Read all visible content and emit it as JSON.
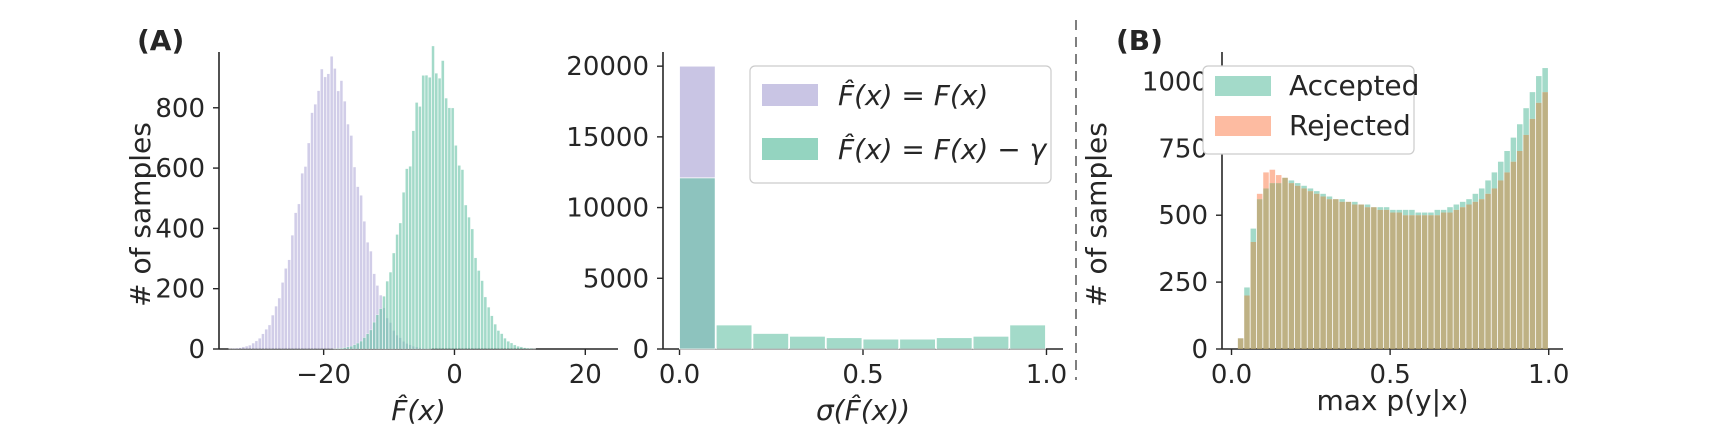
{
  "panel_labels": {
    "a": "(A)",
    "b": "(B)"
  },
  "colors": {
    "lavender": "#b2acd8",
    "teal": "#66c2a5",
    "orange": "#fc8d62",
    "overlap_b": "#b3a36e",
    "overlap_mid": "#80b4b4",
    "axis": "#262626",
    "divider": "#555555"
  },
  "chart_data": [
    {
      "id": "hist-fhat",
      "type": "bar",
      "xlabel": "F̂(x)",
      "ylabel": "# of samples",
      "xlim": [
        -36,
        25
      ],
      "ylim": [
        0,
        985
      ],
      "xticks": [
        -20,
        0,
        20
      ],
      "xtick_labels": [
        "−20",
        "0",
        "20"
      ],
      "yticks": [
        0,
        200,
        400,
        600,
        800
      ],
      "ytick_labels": [
        "0",
        "200",
        "400",
        "600",
        "800"
      ],
      "bin_width": 0.5,
      "series": [
        {
          "color": "#b2acd8",
          "distribution": "normal",
          "mean": -19,
          "std": 4.2,
          "peak": 950
        },
        {
          "color": "#66c2a5",
          "distribution": "normal",
          "mean": -3,
          "std": 4.2,
          "peak": 960
        }
      ]
    },
    {
      "id": "hist-sigma",
      "type": "bar",
      "xlabel": "σ(F̂(x))",
      "ylabel": "",
      "xlim": [
        -0.045,
        1.045
      ],
      "ylim": [
        0,
        21000
      ],
      "xticks": [
        0.0,
        0.5,
        1.0
      ],
      "xtick_labels": [
        "0.0",
        "0.5",
        "1.0"
      ],
      "yticks": [
        0,
        5000,
        10000,
        15000,
        20000
      ],
      "ytick_labels": [
        "0",
        "5000",
        "10000",
        "15000",
        "20000"
      ],
      "bin_edges": [
        0.0,
        0.1,
        0.2,
        0.3,
        0.4,
        0.5,
        0.6,
        0.7,
        0.8,
        0.9,
        1.0
      ],
      "series": [
        {
          "name": "F̂(x) = F(x)",
          "color": "#b2acd8",
          "values": [
            20000,
            0,
            0,
            0,
            0,
            0,
            0,
            0,
            0,
            0
          ]
        },
        {
          "name": "F̂(x) = F(x) − γ",
          "color": "#66c2a5",
          "values": [
            12100,
            1700,
            1100,
            900,
            800,
            700,
            700,
            800,
            900,
            1700
          ]
        }
      ],
      "legend": {
        "placement": "top-right",
        "entries": [
          {
            "lhs": "F̂(x)",
            "rhs": "= F(x)"
          },
          {
            "lhs": "F̂(x)",
            "rhs": "= F(x) − γ"
          }
        ]
      }
    },
    {
      "id": "hist-maxp",
      "type": "bar",
      "xlabel": "max p(y|x)",
      "ylabel": "# of samples",
      "xlim": [
        -0.03,
        1.045
      ],
      "ylim": [
        0,
        1110
      ],
      "xticks": [
        0.0,
        0.5,
        1.0
      ],
      "xtick_labels": [
        "0.0",
        "0.5",
        "1.0"
      ],
      "yticks": [
        0,
        250,
        500,
        750,
        1000
      ],
      "ytick_labels": [
        "0",
        "250",
        "500",
        "750",
        "1000"
      ],
      "bin_start": 0.02,
      "bin_width": 0.02,
      "series": [
        {
          "name": "Accepted",
          "color": "#66c2a5",
          "values": [
            40,
            230,
            450,
            560,
            600,
            620,
            620,
            640,
            630,
            620,
            610,
            600,
            590,
            580,
            570,
            560,
            560,
            550,
            550,
            540,
            540,
            530,
            530,
            530,
            520,
            520,
            520,
            520,
            510,
            510,
            510,
            520,
            520,
            530,
            540,
            550,
            560,
            580,
            600,
            630,
            660,
            700,
            740,
            790,
            840,
            900,
            960,
            1020,
            1050
          ]
        },
        {
          "name": "Rejected",
          "color": "#fc8d62",
          "values": [
            40,
            200,
            400,
            580,
            660,
            670,
            650,
            640,
            620,
            610,
            600,
            590,
            580,
            570,
            560,
            560,
            550,
            550,
            540,
            540,
            530,
            530,
            520,
            520,
            510,
            510,
            500,
            500,
            500,
            500,
            500,
            500,
            510,
            510,
            520,
            530,
            540,
            550,
            560,
            580,
            600,
            630,
            660,
            700,
            740,
            800,
            860,
            920,
            960
          ]
        }
      ],
      "legend": {
        "placement": "top-left",
        "entries": [
          "Accepted",
          "Rejected"
        ]
      }
    }
  ]
}
